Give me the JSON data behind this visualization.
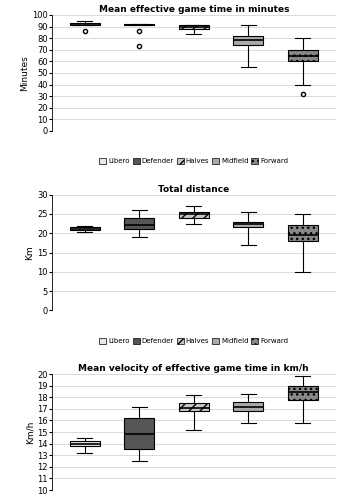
{
  "plot1": {
    "title": "Mean effective game time in minutes",
    "ylabel": "Minutes",
    "ylim": [
      0,
      100
    ],
    "yticks": [
      0,
      10,
      20,
      30,
      40,
      50,
      60,
      70,
      80,
      90,
      100
    ],
    "boxes": [
      {
        "q1": 91.0,
        "median": 92.0,
        "q3": 93.0,
        "whislo": 91.0,
        "whishi": 95.0,
        "fliers": [
          86.0
        ]
      },
      {
        "q1": 91.0,
        "median": 91.5,
        "q3": 92.0,
        "whislo": 91.0,
        "whishi": 92.5,
        "fliers": [
          86.0,
          73.0
        ]
      },
      {
        "q1": 88.0,
        "median": 90.0,
        "q3": 91.0,
        "whislo": 84.0,
        "whishi": 91.5,
        "fliers": []
      },
      {
        "q1": 74.0,
        "median": 78.0,
        "q3": 82.0,
        "whislo": 55.0,
        "whishi": 91.0,
        "fliers": []
      },
      {
        "q1": 60.0,
        "median": 65.0,
        "q3": 70.0,
        "whislo": 40.0,
        "whishi": 80.0,
        "fliers": [
          32.0
        ]
      }
    ],
    "facecolors": [
      "#e8e8e8",
      "#555555",
      "#c8c8c8",
      "#aaaaaa",
      "#888888"
    ],
    "hatches": [
      "",
      "",
      "///",
      "",
      "..."
    ],
    "edgecolors": [
      "black",
      "black",
      "black",
      "black",
      "black"
    ]
  },
  "plot2": {
    "title": "Total distance",
    "ylabel": "Km",
    "ylim": [
      0,
      30
    ],
    "yticks": [
      0,
      5,
      10,
      15,
      20,
      25,
      30
    ],
    "boxes": [
      {
        "q1": 20.8,
        "median": 21.2,
        "q3": 21.5,
        "whislo": 20.2,
        "whishi": 21.8,
        "fliers": []
      },
      {
        "q1": 21.0,
        "median": 22.0,
        "q3": 24.0,
        "whislo": 19.0,
        "whishi": 26.0,
        "fliers": []
      },
      {
        "q1": 24.0,
        "median": 25.0,
        "q3": 25.5,
        "whislo": 22.5,
        "whishi": 27.0,
        "fliers": []
      },
      {
        "q1": 21.5,
        "median": 22.5,
        "q3": 23.0,
        "whislo": 17.0,
        "whishi": 25.5,
        "fliers": []
      },
      {
        "q1": 18.0,
        "median": 19.5,
        "q3": 22.0,
        "whislo": 10.0,
        "whishi": 25.0,
        "fliers": []
      }
    ],
    "facecolors": [
      "#e8e8e8",
      "#555555",
      "#c8c8c8",
      "#aaaaaa",
      "#888888"
    ],
    "hatches": [
      "",
      "",
      "///",
      "",
      "..."
    ],
    "edgecolors": [
      "black",
      "black",
      "black",
      "black",
      "black"
    ]
  },
  "plot3": {
    "title": "Mean velocity of effective game time in km/h",
    "ylabel": "Km/h",
    "ylim": [
      10,
      20
    ],
    "yticks": [
      10,
      11,
      12,
      13,
      14,
      15,
      16,
      17,
      18,
      19,
      20
    ],
    "boxes": [
      {
        "q1": 13.8,
        "median": 14.0,
        "q3": 14.2,
        "whislo": 13.2,
        "whishi": 14.5,
        "fliers": []
      },
      {
        "q1": 13.5,
        "median": 14.8,
        "q3": 16.2,
        "whislo": 12.5,
        "whishi": 17.2,
        "fliers": []
      },
      {
        "q1": 16.8,
        "median": 17.1,
        "q3": 17.5,
        "whislo": 15.2,
        "whishi": 18.2,
        "fliers": []
      },
      {
        "q1": 16.8,
        "median": 17.2,
        "q3": 17.6,
        "whislo": 15.8,
        "whishi": 18.3,
        "fliers": []
      },
      {
        "q1": 17.8,
        "median": 18.5,
        "q3": 19.0,
        "whislo": 15.8,
        "whishi": 19.8,
        "fliers": []
      }
    ],
    "facecolors": [
      "#e8e8e8",
      "#555555",
      "#c8c8c8",
      "#aaaaaa",
      "#888888"
    ],
    "hatches": [
      "",
      "",
      "///",
      "",
      "..."
    ],
    "edgecolors": [
      "black",
      "black",
      "black",
      "black",
      "black"
    ]
  },
  "positions": [
    1,
    2,
    3,
    4,
    5
  ],
  "box_width": 0.55,
  "legend_labels": [
    "Libero",
    "Defender",
    "Halves",
    "Midfield",
    "Forward"
  ],
  "legend_facecolors": [
    "#e8e8e8",
    "#555555",
    "#c8c8c8",
    "#aaaaaa",
    "#888888"
  ],
  "legend_hatches": [
    "",
    "",
    "///",
    "",
    "..."
  ],
  "figsize": [
    3.46,
    5.0
  ],
  "dpi": 100
}
